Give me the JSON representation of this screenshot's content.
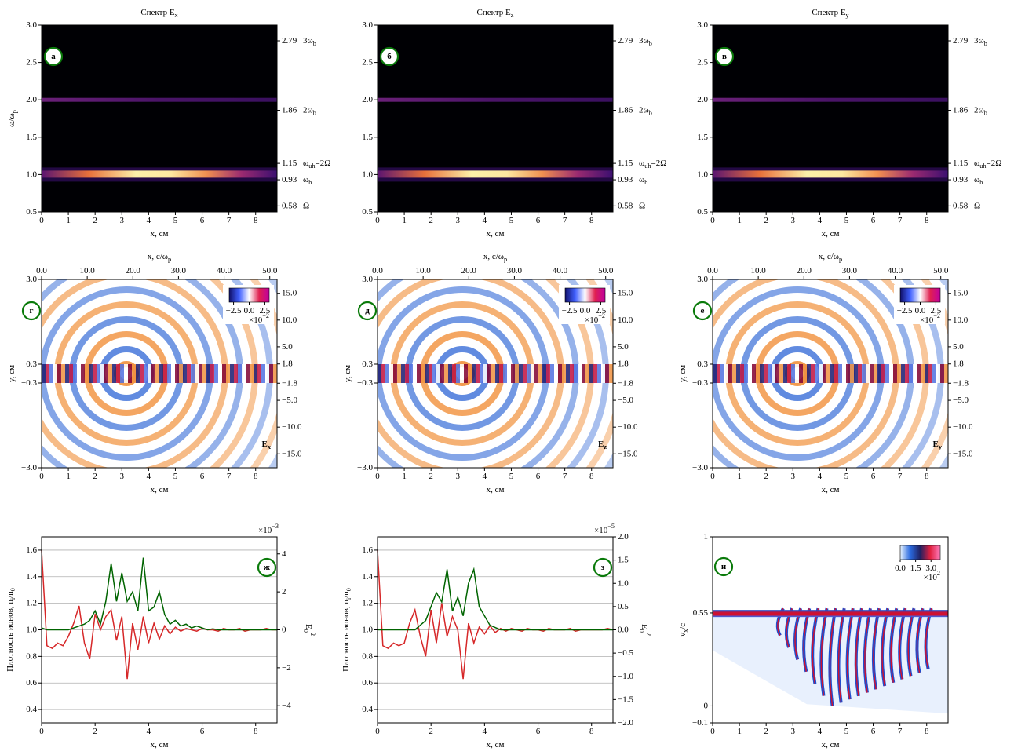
{
  "chart_data": [
    {
      "type": "spectrogram",
      "title": "Спектр E_x",
      "panel_label": "а",
      "xlabel": "x, см",
      "ylabel": "ω/ω_p",
      "xlim": [
        0,
        8.8
      ],
      "xticks": [
        0,
        1,
        2,
        3,
        4,
        5,
        6,
        7,
        8
      ],
      "ylim": [
        0.5,
        3.0
      ],
      "yticks": [
        0.5,
        {
          "value": 1,
          "label": "1.0"
        },
        1.5,
        {
          "value": 2,
          "label": "2.0"
        },
        2.5,
        {
          "value": 3,
          "label": "3.0"
        }
      ],
      "y2lim": [
        0.5,
        3.0
      ],
      "y2ticks": [
        0.58,
        0.93,
        1.15,
        1.86,
        2.79
      ],
      "y2tick_names": [
        "Ω",
        "ω_b",
        "ω_{uh}=2Ω",
        "2ω_b",
        "3ω_b"
      ]
    },
    {
      "type": "spectrogram",
      "title": "Спектр E_z",
      "panel_label": "б",
      "xlabel": "x, см",
      "xlim": [
        0,
        8.8
      ],
      "xticks": [
        0,
        1,
        2,
        3,
        4,
        5,
        6,
        7,
        8
      ],
      "ylim": [
        0.5,
        3.0
      ],
      "yticks": [
        0.5,
        {
          "value": 1,
          "label": "1.0"
        },
        1.5,
        {
          "value": 2,
          "label": "2.0"
        },
        2.5,
        {
          "value": 3,
          "label": "3.0"
        }
      ],
      "y2lim": [
        0.5,
        3.0
      ],
      "y2ticks": [
        0.58,
        0.93,
        1.15,
        1.86,
        2.79
      ],
      "y2tick_names": [
        "Ω",
        "ω_b",
        "ω_{uh}=2Ω",
        "2ω_b",
        "3ω_b"
      ]
    },
    {
      "type": "spectrogram",
      "title": "Спектр E_y",
      "panel_label": "в",
      "xlabel": "x, см",
      "xlim": [
        0,
        8.8
      ],
      "xticks": [
        0,
        1,
        2,
        3,
        4,
        5,
        6,
        7,
        8
      ],
      "ylim": [
        0.5,
        3.0
      ],
      "yticks": [
        0.5,
        {
          "value": 1,
          "label": "1.0"
        },
        1.5,
        {
          "value": 2,
          "label": "2.0"
        },
        2.5,
        {
          "value": 3,
          "label": "3.0"
        }
      ],
      "y2lim": [
        0.5,
        3.0
      ],
      "y2ticks": [
        0.58,
        0.93,
        1.15,
        1.86,
        2.79
      ],
      "y2tick_names": [
        "Ω",
        "ω_b",
        "ω_{uh}=2Ω",
        "2ω_b",
        "3ω_b"
      ]
    },
    {
      "type": "field",
      "panel_label": "г",
      "field_label": "E_x",
      "xlabel": "x, см",
      "ylabel": "y, см",
      "x2label": "x, c/ω_p",
      "xlim": [
        0,
        8.8
      ],
      "xticks": [
        0,
        1,
        2,
        3,
        4,
        5,
        6,
        7,
        8
      ],
      "x2lim": [
        0,
        51.6
      ],
      "x2ticks": [
        {
          "value": 0,
          "label": "0.0"
        },
        {
          "value": 10,
          "label": "10.0"
        },
        {
          "value": 20,
          "label": "20.0"
        },
        {
          "value": 30,
          "label": "30.0"
        },
        {
          "value": 40,
          "label": "40.0"
        },
        {
          "value": 50,
          "label": "50.0"
        }
      ],
      "ylim": [
        -3,
        3
      ],
      "yticks": [
        {
          "value": 3,
          "label": "3.0"
        },
        0.3,
        {
          "value": -0.3,
          "label": "−0.3"
        },
        {
          "value": -3,
          "label": "−3.0"
        }
      ],
      "y2lim": [
        -17.6,
        17.6
      ],
      "y2ticks": [
        {
          "value": 15,
          "label": "15.0"
        },
        {
          "value": 10,
          "label": "10.0"
        },
        {
          "value": 5,
          "label": "5.0"
        },
        1.8,
        {
          "value": -1.8,
          "label": "−1.8"
        },
        {
          "value": -5,
          "label": "−5.0"
        },
        {
          "value": -10,
          "label": "−10.0"
        },
        {
          "value": -15,
          "label": "−15.0"
        }
      ],
      "colorbar": {
        "lim": [
          -3.2,
          3.2
        ],
        "ticks": [
          {
            "value": -2.5,
            "label": "−2.5"
          },
          {
            "value": 0,
            "label": "0.0"
          },
          2.5
        ],
        "scale_label": "×10^{−2}"
      }
    },
    {
      "type": "field",
      "panel_label": "д",
      "field_label": "E_z",
      "xlabel": "x, см",
      "ylabel": "y, см",
      "x2label": "x, c/ω_p",
      "xlim": [
        0,
        8.8
      ],
      "xticks": [
        0,
        1,
        2,
        3,
        4,
        5,
        6,
        7,
        8
      ],
      "x2lim": [
        0,
        51.6
      ],
      "x2ticks": [
        {
          "value": 0,
          "label": "0.0"
        },
        {
          "value": 10,
          "label": "10.0"
        },
        {
          "value": 20,
          "label": "20.0"
        },
        {
          "value": 30,
          "label": "30.0"
        },
        {
          "value": 40,
          "label": "40.0"
        },
        {
          "value": 50,
          "label": "50.0"
        }
      ],
      "ylim": [
        -3,
        3
      ],
      "yticks": [
        {
          "value": 3,
          "label": "3.0"
        },
        0.3,
        {
          "value": -0.3,
          "label": "−0.3"
        },
        {
          "value": -3,
          "label": "−3.0"
        }
      ],
      "y2lim": [
        -17.6,
        17.6
      ],
      "y2ticks": [
        {
          "value": 15,
          "label": "15.0"
        },
        {
          "value": 10,
          "label": "10.0"
        },
        {
          "value": 5,
          "label": "5.0"
        },
        1.8,
        {
          "value": -1.8,
          "label": "−1.8"
        },
        {
          "value": -5,
          "label": "−5.0"
        },
        {
          "value": -10,
          "label": "−10.0"
        },
        {
          "value": -15,
          "label": "−15.0"
        }
      ],
      "colorbar": {
        "lim": [
          -3.2,
          3.2
        ],
        "ticks": [
          {
            "value": -2.5,
            "label": "−2.5"
          },
          {
            "value": 0,
            "label": "0.0"
          },
          2.5
        ],
        "scale_label": "×10^{−2}"
      }
    },
    {
      "type": "field",
      "panel_label": "е",
      "field_label": "E_y",
      "xlabel": "x, см",
      "ylabel": "y, см",
      "x2label": "x, c/ω_p",
      "xlim": [
        0,
        8.8
      ],
      "xticks": [
        0,
        1,
        2,
        3,
        4,
        5,
        6,
        7,
        8
      ],
      "x2lim": [
        0,
        51.6
      ],
      "x2ticks": [
        {
          "value": 0,
          "label": "0.0"
        },
        {
          "value": 10,
          "label": "10.0"
        },
        {
          "value": 20,
          "label": "20.0"
        },
        {
          "value": 30,
          "label": "30.0"
        },
        {
          "value": 40,
          "label": "40.0"
        },
        {
          "value": 50,
          "label": "50.0"
        }
      ],
      "ylim": [
        -3,
        3
      ],
      "yticks": [
        {
          "value": 3,
          "label": "3.0"
        },
        0.3,
        {
          "value": -0.3,
          "label": "−0.3"
        },
        {
          "value": -3,
          "label": "−3.0"
        }
      ],
      "y2lim": [
        -17.6,
        17.6
      ],
      "y2ticks": [
        {
          "value": 15,
          "label": "15.0"
        },
        {
          "value": 10,
          "label": "10.0"
        },
        {
          "value": 5,
          "label": "5.0"
        },
        1.8,
        {
          "value": -1.8,
          "label": "−1.8"
        },
        {
          "value": -5,
          "label": "−5.0"
        },
        {
          "value": -10,
          "label": "−10.0"
        },
        {
          "value": -15,
          "label": "−15.0"
        }
      ],
      "colorbar": {
        "lim": [
          -3.2,
          3.2
        ],
        "ticks": [
          {
            "value": -2.5,
            "label": "−2.5"
          },
          {
            "value": 0,
            "label": "0.0"
          },
          2.5
        ],
        "scale_label": "×10^{−2}"
      }
    },
    {
      "type": "line",
      "panel_label": "ж",
      "xlabel": "x, см",
      "ylabel": "Плотность ионов, n_i/n_0",
      "y2label": "E_0^2",
      "xlim": [
        0,
        8.8
      ],
      "xticks": [
        0,
        2,
        4,
        6,
        8
      ],
      "ylim": [
        0.3,
        1.7
      ],
      "yticks": [
        0.4,
        0.6,
        0.8,
        {
          "value": 1,
          "label": "1.0"
        },
        1.2,
        1.4,
        1.6
      ],
      "y2lim": [
        -4.9,
        4.9
      ],
      "y2ticks": [
        {
          "value": -4,
          "label": "−4"
        },
        {
          "value": -2,
          "label": "−2"
        },
        0,
        2,
        4
      ],
      "y2_scale_label": "×10^{−3}",
      "grid": true,
      "x": [
        0,
        0.2,
        0.4,
        0.6,
        0.8,
        1,
        1.2,
        1.4,
        1.6,
        1.8,
        2,
        2.2,
        2.4,
        2.6,
        2.8,
        3,
        3.2,
        3.4,
        3.6,
        3.8,
        4,
        4.2,
        4.4,
        4.6,
        4.8,
        5,
        5.2,
        5.4,
        5.6,
        5.8,
        6,
        6.2,
        6.4,
        6.6,
        6.8,
        7,
        7.2,
        7.4,
        7.6,
        7.8,
        8,
        8.2,
        8.4,
        8.6,
        8.8
      ],
      "series": [
        {
          "color": "#d62728",
          "values": [
            1.6,
            0.88,
            0.86,
            0.9,
            0.88,
            0.95,
            1.05,
            1.18,
            0.9,
            0.78,
            1.12,
            1.0,
            1.1,
            1.15,
            0.92,
            1.1,
            0.63,
            1.05,
            0.85,
            1.1,
            0.9,
            1.05,
            0.93,
            1.03,
            0.97,
            1.02,
            0.99,
            1.01,
            1.0,
            0.99,
            1.01,
            1.0,
            1.0,
            0.99,
            1.01,
            1.0,
            1.0,
            1.01,
            0.99,
            1.0,
            1.0,
            1.0,
            1.01,
            1.0,
            1.0
          ]
        },
        {
          "color": "#006400",
          "axis": "y2",
          "values": [
            0.1,
            0,
            0,
            0,
            0,
            0,
            0.1,
            0.2,
            0.3,
            0.5,
            1.0,
            0.3,
            1.5,
            3.5,
            1.5,
            3.0,
            1.5,
            2.0,
            1.0,
            3.8,
            1.0,
            1.2,
            2.0,
            0.8,
            0.3,
            0.5,
            0.2,
            0.3,
            0.1,
            0.2,
            0.1,
            0,
            0.05,
            0,
            0,
            0,
            0,
            0,
            0,
            0,
            0,
            0,
            0,
            0,
            0
          ]
        }
      ]
    },
    {
      "type": "line",
      "panel_label": "з",
      "xlabel": "x, см",
      "ylabel": "Плотность ионов, n_i/n_0",
      "y2label": "E_0^2",
      "xlim": [
        0,
        8.8
      ],
      "xticks": [
        0,
        2,
        4,
        6,
        8
      ],
      "ylim": [
        0.3,
        1.7
      ],
      "yticks": [
        0.4,
        0.6,
        0.8,
        {
          "value": 1,
          "label": "1.0"
        },
        1.2,
        1.4,
        1.6
      ],
      "y2lim": [
        -2,
        2
      ],
      "y2ticks": [
        {
          "value": -2,
          "label": "−2.0"
        },
        {
          "value": -1.5,
          "label": "−1.5"
        },
        {
          "value": -1,
          "label": "−1.0"
        },
        {
          "value": -0.5,
          "label": "−0.5"
        },
        {
          "value": 0,
          "label": "0.0"
        },
        0.5,
        {
          "value": 1,
          "label": "1.0"
        },
        1.5,
        {
          "value": 2,
          "label": "2.0"
        }
      ],
      "y2_scale_label": "×10^{−5}",
      "grid": true,
      "x": [
        0,
        0.2,
        0.4,
        0.6,
        0.8,
        1,
        1.2,
        1.4,
        1.6,
        1.8,
        2,
        2.2,
        2.4,
        2.6,
        2.8,
        3,
        3.2,
        3.4,
        3.6,
        3.8,
        4,
        4.2,
        4.4,
        4.6,
        4.8,
        5,
        5.2,
        5.4,
        5.6,
        5.8,
        6,
        6.2,
        6.4,
        6.6,
        6.8,
        7,
        7.2,
        7.4,
        7.6,
        7.8,
        8,
        8.2,
        8.4,
        8.6,
        8.8
      ],
      "series": [
        {
          "color": "#d62728",
          "values": [
            1.6,
            0.88,
            0.86,
            0.9,
            0.88,
            0.9,
            1.05,
            1.15,
            0.95,
            0.8,
            1.15,
            0.9,
            1.2,
            0.95,
            1.1,
            1.0,
            0.63,
            1.05,
            0.9,
            1.02,
            0.97,
            1.03,
            0.98,
            1.01,
            0.99,
            1.01,
            1.0,
            0.99,
            1.01,
            1.0,
            1.0,
            0.99,
            1.01,
            1.0,
            1.0,
            1.0,
            1.01,
            0.99,
            1.0,
            1.0,
            1.0,
            1.0,
            1.0,
            1.01,
            1.0
          ]
        },
        {
          "color": "#006400",
          "axis": "y2",
          "values": [
            0,
            0,
            0,
            0,
            0,
            0,
            0,
            0,
            0.1,
            0.2,
            0.5,
            0.8,
            0.6,
            1.3,
            0.4,
            0.7,
            0.3,
            1.0,
            1.3,
            0.5,
            0.3,
            0.1,
            0.05,
            0,
            0,
            0,
            0,
            0,
            0,
            0,
            0,
            0,
            0,
            0,
            0,
            0,
            0,
            0,
            0,
            0,
            0,
            0,
            0,
            0,
            0
          ]
        }
      ]
    },
    {
      "type": "phase",
      "panel_label": "и",
      "xlabel": "x, см",
      "ylabel": "v_x/c",
      "xlim": [
        0,
        8.8
      ],
      "xticks": [
        0,
        1,
        2,
        3,
        4,
        5,
        6,
        7,
        8
      ],
      "ylim": [
        -0.1,
        1
      ],
      "yticks": [
        1,
        0.55,
        0,
        {
          "value": -0.1,
          "label": "−0.1"
        }
      ],
      "grid": true,
      "colorbar": {
        "lim": [
          0,
          3.9
        ],
        "ticks": [
          {
            "value": 0,
            "label": "0.0"
          },
          1.5,
          {
            "value": 3,
            "label": "3.0"
          }
        ],
        "scale_label": "×10^2"
      }
    }
  ]
}
